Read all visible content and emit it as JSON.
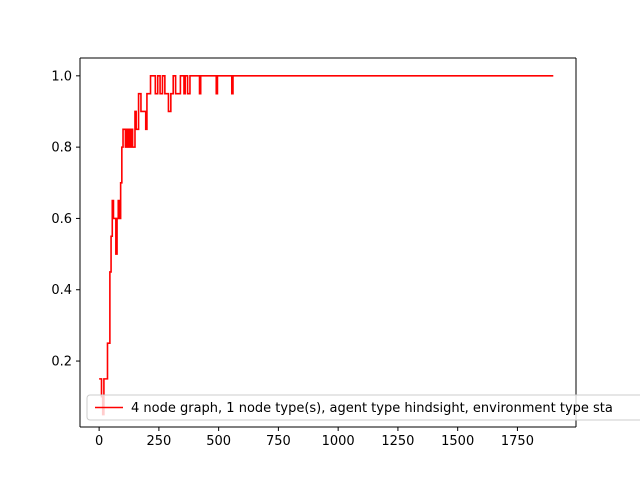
{
  "chart_data": {
    "type": "line",
    "title": "",
    "xlabel": "",
    "ylabel": "",
    "xlim": [
      -80,
      1995
    ],
    "ylim": [
      0.015,
      1.05
    ],
    "xticks": [
      0,
      250,
      500,
      750,
      1000,
      1250,
      1500,
      1750
    ],
    "yticks": [
      0.2,
      0.4,
      0.6,
      0.8,
      1.0
    ],
    "xtick_labels": [
      "0",
      "250",
      "500",
      "750",
      "1000",
      "1250",
      "1500",
      "1750"
    ],
    "ytick_labels": [
      "0.2",
      "0.4",
      "0.6",
      "0.8",
      "1.0"
    ],
    "grid": false,
    "legend_position": "lower-left",
    "series": [
      {
        "name": "4 node graph, 1 node type(s), agent type hindsight, environment type sta",
        "color": "#ff0000",
        "x": [
          0,
          10,
          10,
          15,
          15,
          20,
          20,
          35,
          35,
          45,
          45,
          50,
          50,
          55,
          55,
          60,
          60,
          70,
          70,
          75,
          75,
          80,
          80,
          85,
          85,
          90,
          90,
          95,
          95,
          100,
          100,
          110,
          110,
          115,
          115,
          120,
          120,
          125,
          125,
          130,
          130,
          135,
          135,
          140,
          140,
          150,
          150,
          155,
          155,
          165,
          165,
          175,
          175,
          195,
          195,
          200,
          200,
          215,
          215,
          235,
          235,
          245,
          245,
          255,
          255,
          265,
          265,
          275,
          275,
          290,
          290,
          300,
          300,
          310,
          310,
          320,
          320,
          340,
          340,
          355,
          355,
          360,
          360,
          370,
          370,
          380,
          380,
          420,
          420,
          425,
          425,
          490,
          490,
          495,
          495,
          555,
          555,
          560,
          560,
          1900
        ],
        "values": [
          0.15,
          0.15,
          0.1,
          0.1,
          0.05,
          0.05,
          0.15,
          0.15,
          0.25,
          0.25,
          0.45,
          0.45,
          0.55,
          0.55,
          0.65,
          0.65,
          0.6,
          0.6,
          0.5,
          0.5,
          0.6,
          0.6,
          0.65,
          0.65,
          0.6,
          0.6,
          0.7,
          0.7,
          0.8,
          0.8,
          0.85,
          0.85,
          0.8,
          0.8,
          0.85,
          0.85,
          0.8,
          0.8,
          0.85,
          0.85,
          0.8,
          0.8,
          0.85,
          0.85,
          0.8,
          0.8,
          0.9,
          0.9,
          0.85,
          0.85,
          0.95,
          0.95,
          0.9,
          0.9,
          0.85,
          0.85,
          0.95,
          0.95,
          1.0,
          1.0,
          0.95,
          0.95,
          1.0,
          1.0,
          0.95,
          0.95,
          1.0,
          1.0,
          0.95,
          0.95,
          0.9,
          0.9,
          0.95,
          0.95,
          1.0,
          1.0,
          0.95,
          0.95,
          1.0,
          1.0,
          0.95,
          0.95,
          1.0,
          1.0,
          0.95,
          0.95,
          1.0,
          1.0,
          0.95,
          0.95,
          1.0,
          1.0,
          0.95,
          0.95,
          1.0,
          1.0,
          0.95,
          0.95,
          1.0,
          1.0
        ]
      }
    ]
  },
  "legend": {
    "label": "4 node graph, 1 node type(s), agent type hindsight, environment type sta"
  }
}
